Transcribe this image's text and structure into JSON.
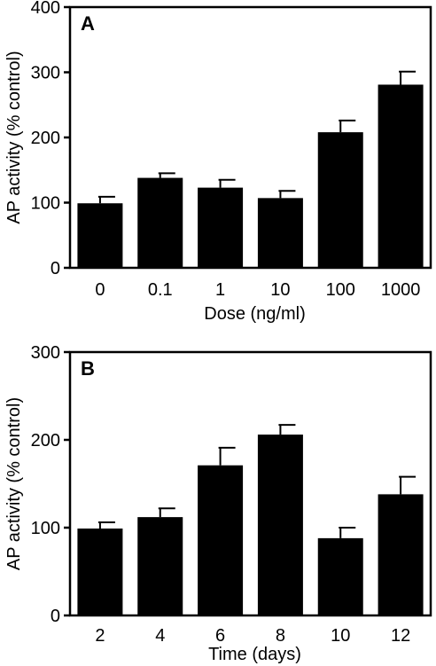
{
  "chart_data": [
    {
      "type": "bar",
      "panel_label": "A",
      "xlabel": "Dose (ng/ml)",
      "ylabel": "AP activity (% control)",
      "categories": [
        "0",
        "0.1",
        "1",
        "10",
        "100",
        "1000"
      ],
      "values": [
        99,
        138,
        123,
        107,
        208,
        281
      ],
      "errors": [
        10,
        7,
        12,
        11,
        18,
        20
      ],
      "ylim": [
        0,
        400
      ],
      "yticks": [
        0,
        100,
        200,
        300,
        400
      ],
      "grid": false
    },
    {
      "type": "bar",
      "panel_label": "B",
      "xlabel": "Time (days)",
      "ylabel": "AP activity (% control)",
      "categories": [
        "2",
        "4",
        "6",
        "8",
        "10",
        "12"
      ],
      "values": [
        99,
        112,
        171,
        206,
        88,
        138
      ],
      "errors": [
        7,
        10,
        20,
        11,
        12,
        20
      ],
      "ylim": [
        0,
        300
      ],
      "yticks": [
        0,
        100,
        200,
        300
      ],
      "grid": false
    }
  ],
  "colors": {
    "bar": "#000000",
    "axis": "#000000"
  }
}
